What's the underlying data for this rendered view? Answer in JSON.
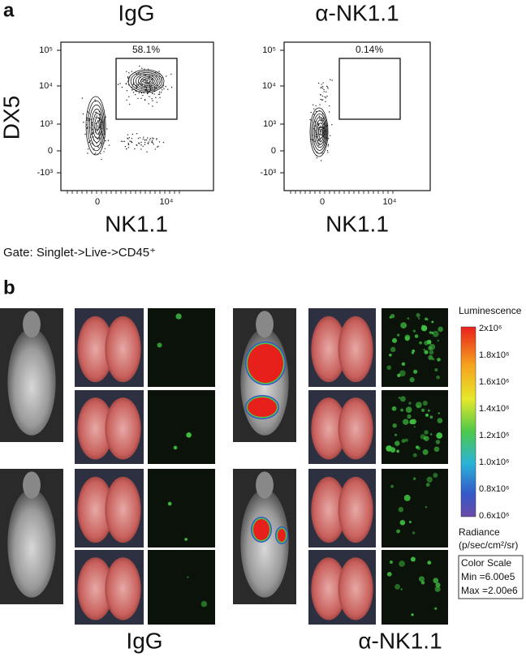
{
  "panel_a": {
    "label": "a",
    "plots": [
      {
        "title": "IgG",
        "gate_percent": "58.1%",
        "y_label": "DX5",
        "x_label": "NK1.1",
        "y_ticks": [
          "10⁵",
          "10⁴",
          "10³",
          "0",
          "-10³"
        ],
        "x_ticks": [
          "0",
          "10⁴"
        ]
      },
      {
        "title": "α-NK1.1",
        "gate_percent": "0.14%",
        "x_label": "NK1.1",
        "y_ticks": [
          "10⁵",
          "10⁴",
          "10³",
          "0",
          "-10³"
        ],
        "x_ticks": [
          "0",
          "10⁴"
        ]
      }
    ],
    "gate": "Gate: Singlet->Live->CD45⁺"
  },
  "panel_b": {
    "label": "b",
    "groups": [
      "IgG",
      "α-NK1.1"
    ],
    "color_scale": {
      "title": "Luminescence",
      "ticks": [
        "2x10⁶",
        "1.8x10⁶",
        "1.6x10⁶",
        "1.4x10⁶",
        "1.2x10⁶",
        "1.0x10⁶",
        "0.8x10⁶",
        "0.6x10⁶"
      ],
      "unit_label": "Radiance",
      "unit": "(p/sec/cm²/sr)",
      "box": [
        "Color Scale",
        "Min =6.00e5",
        "Max =2.00e6"
      ]
    }
  }
}
